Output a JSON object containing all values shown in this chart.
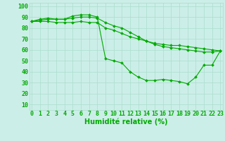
{
  "xlabel": "Humidité relative (%)",
  "background_color": "#cceee8",
  "grid_color": "#aaddcc",
  "line_color": "#00aa00",
  "x_ticks": [
    0,
    1,
    2,
    3,
    4,
    5,
    6,
    7,
    8,
    9,
    10,
    11,
    12,
    13,
    14,
    15,
    16,
    17,
    18,
    19,
    20,
    21,
    22,
    23
  ],
  "y_ticks": [
    10,
    20,
    30,
    40,
    50,
    60,
    70,
    80,
    90,
    100
  ],
  "ylim": [
    5,
    103
  ],
  "xlim": [
    -0.3,
    23.3
  ],
  "series": [
    [
      86,
      88,
      89,
      88,
      88,
      91,
      92,
      92,
      90,
      52,
      50,
      48,
      40,
      35,
      32,
      32,
      33,
      32,
      31,
      29,
      35,
      46,
      46,
      59
    ],
    [
      86,
      86,
      86,
      85,
      85,
      85,
      86,
      85,
      85,
      80,
      78,
      75,
      72,
      70,
      68,
      66,
      65,
      64,
      64,
      63,
      62,
      61,
      60,
      59
    ],
    [
      86,
      87,
      88,
      88,
      88,
      89,
      90,
      90,
      89,
      85,
      82,
      80,
      76,
      72,
      68,
      65,
      63,
      62,
      61,
      60,
      59,
      58,
      58,
      59
    ]
  ],
  "tick_fontsize": 6.0,
  "xlabel_fontsize": 7.0
}
